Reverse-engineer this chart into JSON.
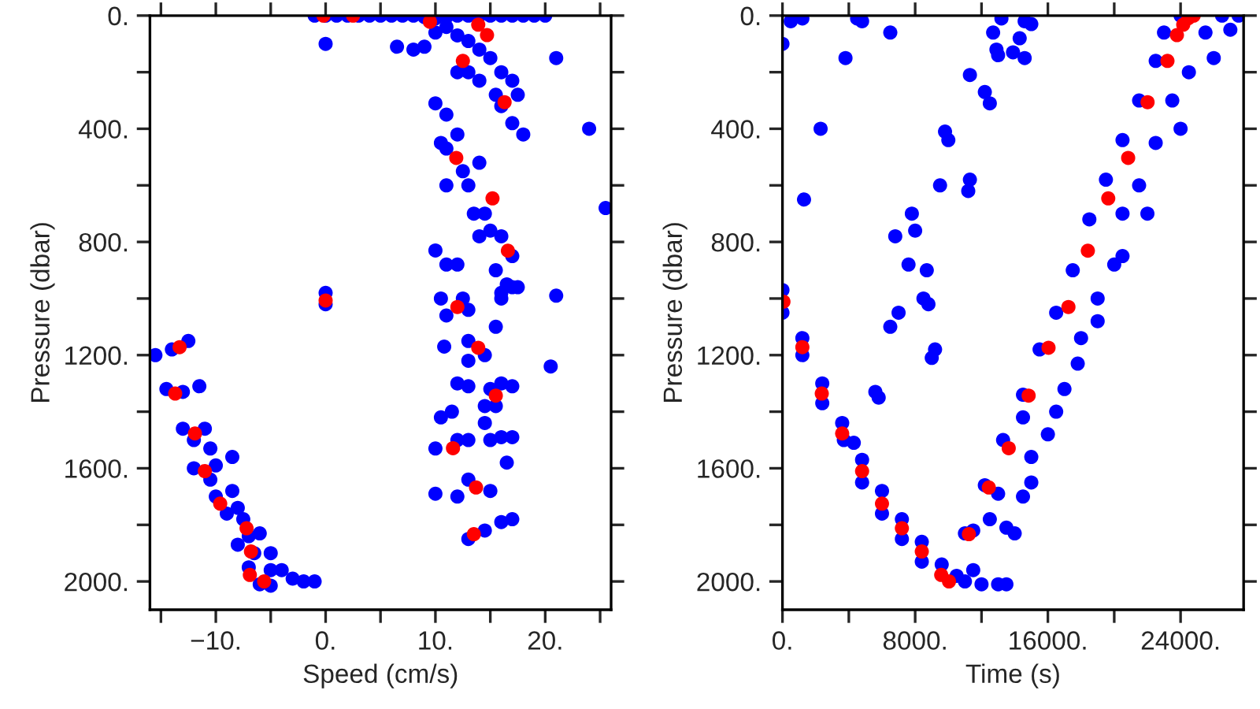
{
  "chart_data": [
    {
      "type": "scatter",
      "xlabel": "Speed (cm/s)",
      "ylabel": "Pressure (dbar)",
      "marker": "circle",
      "xlim": [
        -16,
        26
      ],
      "ylim": [
        2100,
        0
      ],
      "xticks": [
        {
          "value": -15,
          "label": null
        },
        {
          "value": -10,
          "label": "−10."
        },
        {
          "value": -5,
          "label": null
        },
        {
          "value": 0,
          "label": "0."
        },
        {
          "value": 5,
          "label": null
        },
        {
          "value": 10,
          "label": "10."
        },
        {
          "value": 15,
          "label": null
        },
        {
          "value": 20,
          "label": "20."
        },
        {
          "value": 25,
          "label": null
        }
      ],
      "yticks": [
        {
          "value": 0,
          "label": "0."
        },
        {
          "value": 200,
          "label": null
        },
        {
          "value": 400,
          "label": "400."
        },
        {
          "value": 600,
          "label": null
        },
        {
          "value": 800,
          "label": "800."
        },
        {
          "value": 1000,
          "label": null
        },
        {
          "value": 1200,
          "label": "1200."
        },
        {
          "value": 1400,
          "label": null
        },
        {
          "value": 1600,
          "label": "1600."
        },
        {
          "value": 1800,
          "label": null
        },
        {
          "value": 2000,
          "label": "2000."
        }
      ],
      "series": [
        {
          "color": "#0000ff",
          "x": [
            -1,
            0,
            1,
            2,
            3,
            4,
            5,
            6,
            7,
            8,
            9,
            10,
            11,
            12,
            13,
            14,
            15,
            16,
            17,
            18,
            19,
            20,
            0,
            6.5,
            8,
            9,
            10,
            11,
            12,
            13,
            14,
            15,
            16,
            17,
            17.5,
            16,
            17,
            18,
            15.5,
            14,
            13,
            12,
            21,
            24,
            25.5,
            21,
            20.5,
            10,
            11,
            10.5,
            12,
            11,
            12.5,
            13,
            14,
            14.5,
            15,
            16,
            17,
            15.5,
            16.5,
            17.5,
            11,
            13.5,
            14,
            10.8,
            10,
            11,
            12,
            17,
            16,
            16,
            10.5,
            11,
            13,
            12.5,
            15.5,
            13,
            14.5,
            13,
            15,
            16,
            17,
            14.5,
            15.5,
            14.5,
            10.5,
            11.5,
            12,
            13,
            17,
            15,
            16,
            10,
            12,
            13,
            10,
            12,
            13,
            16.5,
            15,
            16,
            17,
            13,
            14.5,
            0,
            0,
            -15.5,
            -14,
            -12.5,
            -14.5,
            -13,
            -11.5,
            -13,
            -11,
            -12,
            -10.5,
            -8.5,
            -12,
            -10,
            -10.5,
            -10,
            -8.5,
            -9,
            -8,
            -7.5,
            -7,
            -6,
            -8,
            -6.5,
            -5,
            -7,
            -5,
            -4,
            -3,
            -1,
            -6,
            -5,
            -2
          ],
          "values": [
            0,
            0,
            0,
            0,
            0,
            0,
            0,
            0,
            0,
            0,
            5,
            10,
            5,
            0,
            0,
            0,
            0,
            0,
            0,
            0,
            0,
            0,
            100,
            110,
            120,
            110,
            60,
            40,
            70,
            90,
            120,
            150,
            200,
            230,
            280,
            320,
            380,
            420,
            280,
            230,
            200,
            200,
            150,
            400,
            680,
            990,
            1240,
            310,
            350,
            450,
            420,
            470,
            550,
            600,
            520,
            700,
            760,
            780,
            850,
            900,
            950,
            960,
            600,
            700,
            780,
            1170,
            830,
            880,
            880,
            960,
            980,
            1000,
            1000,
            1060,
            1040,
            1000,
            1100,
            1150,
            1200,
            1220,
            1320,
            1300,
            1310,
            1380,
            1380,
            1440,
            1420,
            1400,
            1300,
            1310,
            1490,
            1500,
            1490,
            1530,
            1500,
            1500,
            1690,
            1700,
            1640,
            1580,
            1680,
            1790,
            1780,
            1850,
            1820,
            980,
            1020,
            1200,
            1180,
            1150,
            1320,
            1330,
            1310,
            1460,
            1460,
            1500,
            1530,
            1560,
            1600,
            1590,
            1640,
            1700,
            1680,
            1760,
            1740,
            1780,
            1840,
            1830,
            1870,
            1900,
            1900,
            1950,
            1960,
            1960,
            1990,
            2000,
            2010,
            2015,
            2000
          ]
        },
        {
          "color": "#ff0000",
          "x": [
            -0.2,
            2.5,
            9.5,
            13.9,
            14.7,
            12.5,
            16.3,
            11.9,
            15.2,
            16.6,
            0,
            12.0,
            13.9,
            15.5,
            11.6,
            13.7,
            13.5,
            -13.3,
            -13.7,
            -11.9,
            -11.0,
            -9.6,
            -7.2,
            -6.8,
            -6.9,
            -6.1,
            -5.6
          ],
          "values": [
            0,
            0,
            22,
            32,
            69,
            160,
            306,
            503,
            646,
            831,
            1007,
            1030,
            1174,
            1343,
            1529,
            1668,
            1833,
            1172,
            1336,
            1477,
            1610,
            1725,
            1812,
            1894,
            1977,
            null,
            2000
          ]
        }
      ]
    },
    {
      "type": "scatter",
      "xlabel": "Time (s)",
      "ylabel": "Pressure (dbar)",
      "marker": "circle",
      "xlim": [
        0,
        27800
      ],
      "ylim": [
        2100,
        0
      ],
      "xticks": [
        {
          "value": 0,
          "label": "0."
        },
        {
          "value": 4000,
          "label": null
        },
        {
          "value": 8000,
          "label": "8000."
        },
        {
          "value": 12000,
          "label": null
        },
        {
          "value": 16000,
          "label": "16000."
        },
        {
          "value": 20000,
          "label": null
        },
        {
          "value": 24000,
          "label": "24000."
        }
      ],
      "yticks": [
        {
          "value": 0,
          "label": "0."
        },
        {
          "value": 200,
          "label": null
        },
        {
          "value": 400,
          "label": "400."
        },
        {
          "value": 600,
          "label": null
        },
        {
          "value": 800,
          "label": "800."
        },
        {
          "value": 1000,
          "label": null
        },
        {
          "value": 1200,
          "label": "1200."
        },
        {
          "value": 1400,
          "label": null
        },
        {
          "value": 1600,
          "label": "1600."
        },
        {
          "value": 1800,
          "label": null
        },
        {
          "value": 2000,
          "label": "2000."
        }
      ],
      "series": [
        {
          "color": "#0000ff",
          "x": [
            0,
            0,
            1200,
            1200,
            2400,
            2400,
            3600,
            3700,
            4300,
            4800,
            4800,
            6000,
            6000,
            7200,
            7200,
            8400,
            8400,
            9600,
            10500,
            11000,
            12000,
            13000,
            13500,
            11500,
            0,
            500,
            1200,
            1300,
            2300,
            3800,
            4500,
            4800,
            6500,
            7000,
            7600,
            8000,
            8800,
            8500,
            9200,
            9000,
            6500,
            5800,
            5600,
            11300,
            11200,
            13000,
            13200,
            12700,
            12900,
            11300,
            12200,
            12500,
            10000,
            9800,
            13900,
            14300,
            14600,
            14600,
            15000,
            9500,
            7800,
            6800,
            8700,
            11000,
            13500,
            14000,
            12200,
            15000,
            13300,
            16000,
            14500,
            17000,
            15500,
            18000,
            14500,
            16500,
            19000,
            17500,
            20000,
            18500,
            20500,
            19500,
            21500,
            20500,
            22500,
            21500,
            23500,
            22500,
            24500,
            23000,
            25500,
            24000,
            26500,
            27500,
            26000,
            24000,
            22000,
            20500,
            19000,
            17800,
            16500,
            15000,
            14500,
            13000,
            12500,
            11500,
            27000
          ],
          "values": [
            970,
            1050,
            1140,
            1200,
            1300,
            1370,
            1440,
            1500,
            1510,
            1570,
            1650,
            1680,
            1760,
            1780,
            1850,
            1860,
            1930,
            1940,
            1980,
            2000,
            2010,
            2010,
            2010,
            1960,
            100,
            20,
            10,
            650,
            400,
            150,
            10,
            20,
            60,
            1050,
            880,
            760,
            1020,
            1000,
            1180,
            1210,
            1100,
            1350,
            1330,
            580,
            620,
            140,
            10,
            60,
            120,
            210,
            270,
            310,
            440,
            410,
            130,
            80,
            20,
            150,
            30,
            600,
            700,
            780,
            900,
            1830,
            1810,
            1830,
            1660,
            1650,
            1500,
            1480,
            1340,
            1320,
            1180,
            1140,
            1420,
            1050,
            1000,
            900,
            880,
            720,
            700,
            580,
            600,
            440,
            450,
            300,
            300,
            160,
            200,
            60,
            60,
            0,
            0,
            0,
            150,
            400,
            700,
            850,
            1080,
            1230,
            1400,
            1560,
            1700,
            1690,
            1780,
            1820,
            50
          ]
        },
        {
          "color": "#ff0000",
          "x": [
            60,
            1200,
            2370,
            3600,
            4800,
            6000,
            7200,
            8400,
            9570,
            10040,
            11240,
            12440,
            13640,
            14840,
            16040,
            17240,
            18410,
            19640,
            20840,
            22010,
            23210,
            23780,
            24160,
            24470,
            24790
          ],
          "values": [
            1011,
            1172,
            1336,
            1477,
            1610,
            1725,
            1812,
            1894,
            1977,
            2000,
            1833,
            1668,
            1529,
            1343,
            1174,
            1030,
            831,
            646,
            503,
            306,
            160,
            69,
            32,
            9,
            0
          ]
        }
      ]
    }
  ]
}
